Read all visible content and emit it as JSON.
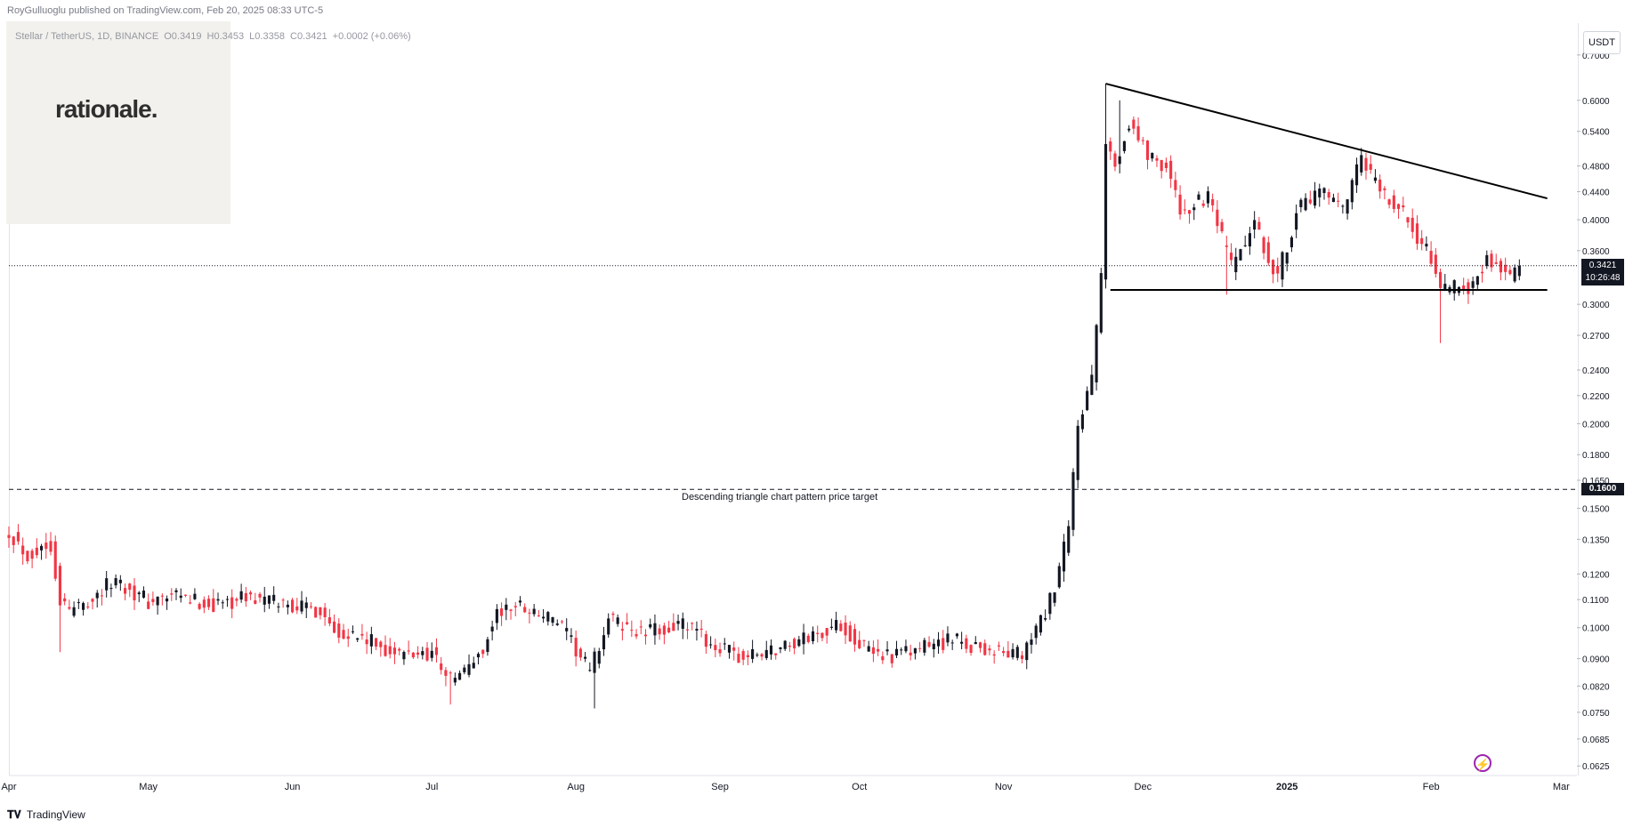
{
  "header": {
    "published_by": "RoyGulluoglu published on TradingView.com, Feb 20, 2025 08:33 UTC-5"
  },
  "symbol_bar": {
    "name": "Stellar / TetherUS, 1D, BINANCE",
    "open": "O0.3419",
    "high": "H0.3453",
    "low": "L0.3358",
    "close": "C0.3421",
    "change": "+0.0002 (+0.06%)"
  },
  "logo": {
    "text": "rationale."
  },
  "axis": {
    "currency": "USDT",
    "last_price": "0.3421",
    "countdown": "10:26:48",
    "target_price": "0.1600"
  },
  "annotation": {
    "text": "Descending triangle chart pattern price target"
  },
  "footer": {
    "brand": "TradingView",
    "icon": "tradingview-logo-icon"
  },
  "colors": {
    "up": "#131722",
    "down": "#f23645",
    "accent_bolt": "#9c27b0"
  },
  "chart_data": {
    "type": "candlestick",
    "title": "",
    "xlabel": "",
    "ylabel": "",
    "scale": "log",
    "ylim": [
      0.0605,
      0.78
    ],
    "y_ticks": [
      0.7,
      0.6,
      0.54,
      0.48,
      0.44,
      0.4,
      0.36,
      0.3,
      0.27,
      0.24,
      0.22,
      0.2,
      0.18,
      0.165,
      0.15,
      0.135,
      0.12,
      0.11,
      0.1,
      0.09,
      0.082,
      0.075,
      0.0685,
      0.0625
    ],
    "y_tick_labels": [
      "0.7000",
      "0.6000",
      "0.5400",
      "0.4800",
      "0.4400",
      "0.4000",
      "0.3600",
      "0.3000",
      "0.2700",
      "0.2400",
      "0.2200",
      "0.2000",
      "0.1800",
      "0.1650",
      "0.1500",
      "0.1350",
      "0.1200",
      "0.1100",
      "0.1000",
      "0.0900",
      "0.0820",
      "0.0750",
      "0.0685",
      "0.0625"
    ],
    "x_range": [
      "2024-04-01",
      "2025-03-04"
    ],
    "x_ticks": [
      {
        "date": "2024-04-01",
        "label": "Apr"
      },
      {
        "date": "2024-05-01",
        "label": "May"
      },
      {
        "date": "2024-06-01",
        "label": "Jun"
      },
      {
        "date": "2024-07-01",
        "label": "Jul"
      },
      {
        "date": "2024-08-01",
        "label": "Aug"
      },
      {
        "date": "2024-09-01",
        "label": "Sep"
      },
      {
        "date": "2024-10-01",
        "label": "Oct"
      },
      {
        "date": "2024-11-01",
        "label": "Nov"
      },
      {
        "date": "2024-12-01",
        "label": "Dec"
      },
      {
        "date": "2025-01-01",
        "label": "2025"
      },
      {
        "date": "2025-02-01",
        "label": "Feb"
      },
      {
        "date": "2025-03-01",
        "label": "Mar"
      }
    ],
    "close_path": [
      {
        "date": "2024-04-01",
        "close": 0.139
      },
      {
        "date": "2024-04-05",
        "close": 0.128
      },
      {
        "date": "2024-04-10",
        "close": 0.133
      },
      {
        "date": "2024-04-12",
        "close": 0.11
      },
      {
        "date": "2024-04-14",
        "close": 0.106
      },
      {
        "date": "2024-04-20",
        "close": 0.112
      },
      {
        "date": "2024-04-24",
        "close": 0.118
      },
      {
        "date": "2024-05-01",
        "close": 0.109
      },
      {
        "date": "2024-05-06",
        "close": 0.111
      },
      {
        "date": "2024-05-15",
        "close": 0.108
      },
      {
        "date": "2024-05-22",
        "close": 0.111
      },
      {
        "date": "2024-06-01",
        "close": 0.108
      },
      {
        "date": "2024-06-07",
        "close": 0.106
      },
      {
        "date": "2024-06-10",
        "close": 0.1
      },
      {
        "date": "2024-06-18",
        "close": 0.095
      },
      {
        "date": "2024-06-24",
        "close": 0.091
      },
      {
        "date": "2024-07-01",
        "close": 0.092
      },
      {
        "date": "2024-07-05",
        "close": 0.084
      },
      {
        "date": "2024-07-08",
        "close": 0.086
      },
      {
        "date": "2024-07-12",
        "close": 0.093
      },
      {
        "date": "2024-07-15",
        "close": 0.105
      },
      {
        "date": "2024-07-20",
        "close": 0.108
      },
      {
        "date": "2024-07-28",
        "close": 0.102
      },
      {
        "date": "2024-08-04",
        "close": 0.086
      },
      {
        "date": "2024-08-06",
        "close": 0.094
      },
      {
        "date": "2024-08-08",
        "close": 0.103
      },
      {
        "date": "2024-08-15",
        "close": 0.098
      },
      {
        "date": "2024-08-24",
        "close": 0.101
      },
      {
        "date": "2024-09-01",
        "close": 0.093
      },
      {
        "date": "2024-09-06",
        "close": 0.09
      },
      {
        "date": "2024-09-15",
        "close": 0.094
      },
      {
        "date": "2024-09-27",
        "close": 0.101
      },
      {
        "date": "2024-10-03",
        "close": 0.092
      },
      {
        "date": "2024-10-10",
        "close": 0.091
      },
      {
        "date": "2024-10-20",
        "close": 0.096
      },
      {
        "date": "2024-10-31",
        "close": 0.092
      },
      {
        "date": "2024-11-05",
        "close": 0.091
      },
      {
        "date": "2024-11-08",
        "close": 0.099
      },
      {
        "date": "2024-11-12",
        "close": 0.113
      },
      {
        "date": "2024-11-15",
        "close": 0.14
      },
      {
        "date": "2024-11-17",
        "close": 0.2
      },
      {
        "date": "2024-11-20",
        "close": 0.23
      },
      {
        "date": "2024-11-22",
        "close": 0.33
      },
      {
        "date": "2024-11-23",
        "close": 0.52
      },
      {
        "date": "2024-11-25",
        "close": 0.48
      },
      {
        "date": "2024-11-28",
        "close": 0.56
      },
      {
        "date": "2024-12-02",
        "close": 0.5
      },
      {
        "date": "2024-12-06",
        "close": 0.48
      },
      {
        "date": "2024-12-09",
        "close": 0.41
      },
      {
        "date": "2024-12-15",
        "close": 0.43
      },
      {
        "date": "2024-12-20",
        "close": 0.34
      },
      {
        "date": "2024-12-25",
        "close": 0.39
      },
      {
        "date": "2024-12-30",
        "close": 0.33
      },
      {
        "date": "2025-01-03",
        "close": 0.41
      },
      {
        "date": "2025-01-08",
        "close": 0.44
      },
      {
        "date": "2025-01-13",
        "close": 0.41
      },
      {
        "date": "2025-01-17",
        "close": 0.49
      },
      {
        "date": "2025-01-21",
        "close": 0.44
      },
      {
        "date": "2025-01-27",
        "close": 0.4
      },
      {
        "date": "2025-02-02",
        "close": 0.34
      },
      {
        "date": "2025-02-03",
        "close": 0.31
      },
      {
        "date": "2025-02-07",
        "close": 0.32
      },
      {
        "date": "2025-02-10",
        "close": 0.32
      },
      {
        "date": "2025-02-13",
        "close": 0.35
      },
      {
        "date": "2025-02-16",
        "close": 0.34
      },
      {
        "date": "2025-02-18",
        "close": 0.33
      },
      {
        "date": "2025-02-20",
        "close": 0.3421
      }
    ],
    "extreme_wicks": [
      {
        "date": "2024-04-12",
        "low": 0.092
      },
      {
        "date": "2024-07-05",
        "low": 0.077
      },
      {
        "date": "2024-08-05",
        "low": 0.076
      },
      {
        "date": "2024-11-23",
        "high": 0.635
      },
      {
        "date": "2024-11-26",
        "high": 0.6
      },
      {
        "date": "2024-12-19",
        "low": 0.31
      },
      {
        "date": "2025-02-03",
        "low": 0.263
      }
    ],
    "last_price": 0.3421,
    "trendlines": [
      {
        "name": "descending resistance",
        "start": {
          "date": "2024-11-23",
          "price": 0.635
        },
        "end": {
          "date": "2025-02-26",
          "price": 0.43
        }
      },
      {
        "name": "support",
        "start": {
          "date": "2024-11-24",
          "price": 0.315
        },
        "end": {
          "date": "2025-02-26",
          "price": 0.315
        }
      }
    ],
    "target_line": {
      "price": 0.16,
      "label": "Descending triangle chart pattern price target"
    }
  }
}
